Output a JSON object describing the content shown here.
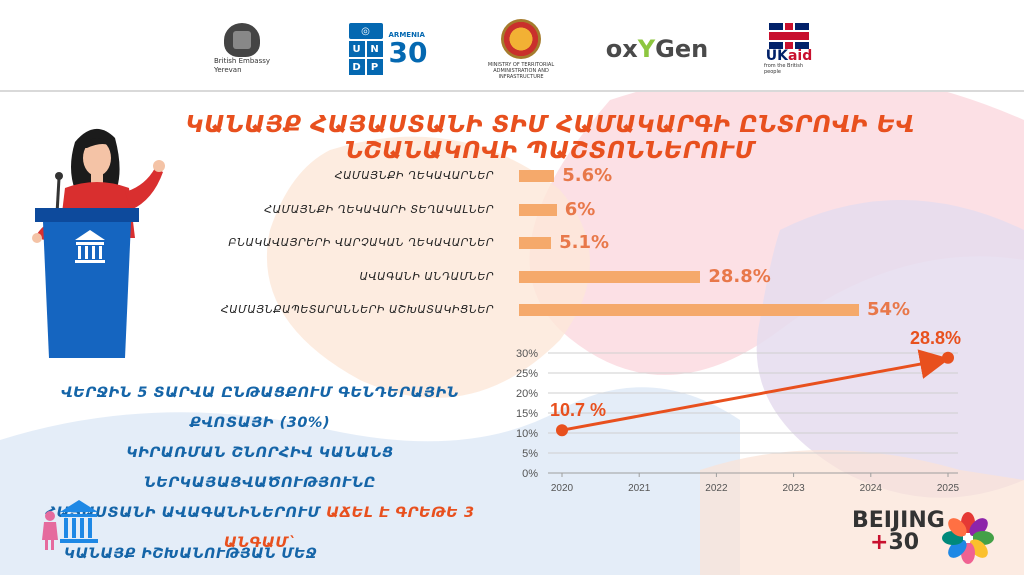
{
  "header": {
    "logos": {
      "british_embassy": "British Embassy\nYerevan",
      "undp": "U N D P",
      "armenia30": "ARMENIA",
      "armenia30_num": "30",
      "mtai": "MINISTRY OF TERRITORIAL ADMINISTRATION AND INFRASTRUCTURE",
      "oxygen_pre": "ox",
      "oxygen_y": "Y",
      "oxygen_post": "Gen",
      "ukaid_uk": "UK",
      "ukaid_aid": "aid",
      "ukaid_cap": "from the British people"
    }
  },
  "title": "ԿԱՆԱՅՔ ՀԱՅԱՍՏԱՆԻ ՏԻՄ ՀԱՄԱԿԱՐԳԻ ԸՆՏՐՈՎԻ ԵՎ ՆՇԱՆԱԿՈՎԻ ՊԱՇՏՈՆՆԵՐՈՒՄ",
  "chart_data": [
    {
      "type": "bar",
      "orientation": "horizontal",
      "categories": [
        "ՀԱՄԱՅՆՔԻ ՂԵԿԱՎԱՐՆԵՐ",
        "ՀԱՄԱՅՆՔԻ ՂԵԿԱՎԱՐԻ ՏԵՂԱԿԱԼՆԵՐ",
        "ԲՆԱԿԱՎԱՅՐԵՐԻ ՎԱՐՉԱԿԱՆ ՂԵԿԱՎԱՐՆԵՐ",
        "ԱՎԱԳԱՆԻ ԱՆԴԱՄՆԵՐ",
        "ՀԱՄԱՅՆՔԱՊԵՏԱՐԱՆՆԵՐԻ ԱՇԽԱՏԱԿԻՑՆԵՐ"
      ],
      "values": [
        5.6,
        6,
        5.1,
        28.8,
        54
      ],
      "labels": [
        "5.6%",
        "6%",
        "5.1%",
        "28.8%",
        "54%"
      ],
      "xlim": [
        0,
        54
      ]
    },
    {
      "type": "line",
      "x": [
        2020,
        2025
      ],
      "y": [
        10.7,
        28.8
      ],
      "point_labels": [
        "10.7 %",
        "28.8%"
      ],
      "x_ticks": [
        "2020",
        "2021",
        "2022",
        "2023",
        "2024",
        "2025"
      ],
      "y_ticks": [
        "0%",
        "5%",
        "10%",
        "15%",
        "20%",
        "25%",
        "30%"
      ],
      "ylim": [
        0,
        30
      ],
      "grid": true,
      "arrow": true
    }
  ],
  "statement": {
    "line1": "ՎԵՐՋԻՆ 5 ՏԱՐՎԱ ԸՆԹԱՑՔՈՒՄ  ԳԵՆԴԵՐԱՅԻՆ ՔՎՈՏԱՅԻ (30%)",
    "line2": "ԿԻՐԱՌՄԱՆ ՇՆՈՐՀԻՎ ԿԱՆԱՆՑ ՆԵՐԿԱՅԱՑՎԱԾՈՒԹՅՈՒՆԸ",
    "line3": "ՀԱՅԱՍՏԱՆԻ ԱՎԱԳԱՆԻՆԵՐՈՒՄ",
    "line3_highlight": "ԱՃԵԼ Է ԳՐԵԹԵ 3 ԱՆԳԱՄ`"
  },
  "footer": {
    "label": "ԿԱՆԱՅՔ ԻՇԽԱՆՈՒԹՅԱՆ ՄԵՋ",
    "beijing": "BEIJING",
    "plus30_plus": "+",
    "plus30_num": "30"
  },
  "colors": {
    "accent_orange": "#e8501e",
    "bar_fill": "#f5a96b",
    "bar_value": "#e8784a",
    "primary_blue": "#1565a8"
  }
}
